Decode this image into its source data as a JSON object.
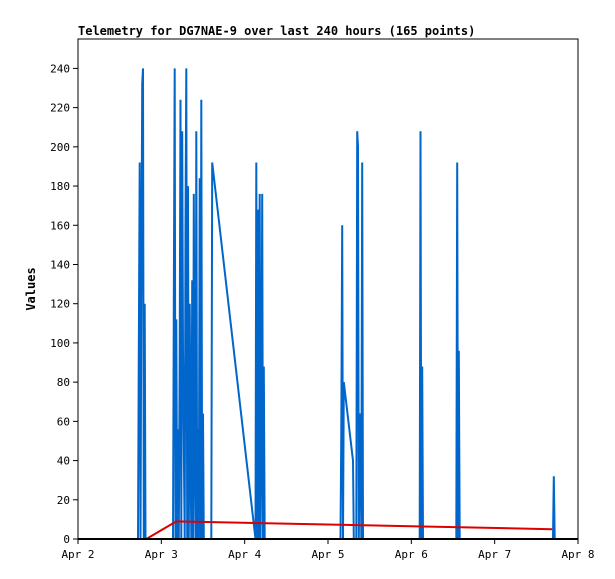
{
  "chart_data": {
    "type": "line",
    "title": "Telemetry for DG7NAE-9 over last 240 hours (165 points)",
    "xlabel": "",
    "ylabel": "Values",
    "x_tick_labels": [
      "Apr 2",
      "Apr 3",
      "Apr 4",
      "Apr 5",
      "Apr 6",
      "Apr 7",
      "Apr 8"
    ],
    "y_ticks": [
      0,
      20,
      40,
      60,
      80,
      100,
      120,
      140,
      160,
      180,
      200,
      220,
      240
    ],
    "x_range_days": [
      2.0,
      8.0
    ],
    "ylim": [
      0,
      255
    ],
    "grid": false,
    "legend": "none",
    "series": [
      {
        "color": "#0066cc",
        "x_days": [
          2.72,
          2.73,
          2.74,
          2.75,
          2.76,
          2.77,
          2.78,
          2.79,
          2.8,
          2.81,
          2.82,
          3.14,
          3.15,
          3.16,
          3.17,
          3.18,
          3.19,
          3.2,
          3.21,
          3.22,
          3.23,
          3.24,
          3.25,
          3.26,
          3.27,
          3.28,
          3.29,
          3.3,
          3.31,
          3.32,
          3.33,
          3.34,
          3.35,
          3.36,
          3.37,
          3.38,
          3.39,
          3.4,
          3.41,
          3.42,
          3.43,
          3.44,
          3.45,
          3.46,
          3.47,
          3.48,
          3.49,
          3.5,
          3.51,
          3.52,
          3.53,
          3.54,
          3.55,
          3.56,
          3.57,
          3.58,
          3.59,
          3.6,
          3.61,
          4.13,
          4.14,
          4.15,
          4.16,
          4.17,
          4.18,
          4.19,
          4.2,
          4.21,
          4.22,
          4.23,
          4.24,
          5.15,
          5.16,
          5.17,
          5.18,
          5.19,
          5.3,
          5.31,
          5.32,
          5.33,
          5.34,
          5.35,
          5.36,
          5.37,
          5.38,
          5.39,
          5.4,
          5.41,
          5.42,
          5.43,
          6.1,
          6.11,
          6.12,
          6.13,
          6.14,
          6.54,
          6.55,
          6.56,
          6.57,
          6.58,
          7.7,
          7.71,
          7.72
        ],
        "values": [
          0,
          96,
          192,
          0,
          120,
          232,
          240,
          0,
          120,
          0,
          0,
          0,
          120,
          240,
          0,
          112,
          0,
          56,
          0,
          96,
          224,
          0,
          208,
          96,
          48,
          0,
          160,
          240,
          0,
          180,
          0,
          120,
          48,
          0,
          132,
          0,
          176,
          48,
          0,
          208,
          0,
          56,
          0,
          184,
          0,
          224,
          0,
          64,
          0,
          0,
          0,
          0,
          0,
          0,
          0,
          0,
          0,
          0,
          192,
          0,
          192,
          0,
          168,
          0,
          176,
          0,
          48,
          176,
          0,
          88,
          0,
          0,
          56,
          160,
          0,
          80,
          40,
          0,
          0,
          0,
          0,
          208,
          200,
          0,
          48,
          64,
          0,
          192,
          0,
          0,
          0,
          208,
          0,
          88,
          0,
          0,
          192,
          0,
          96,
          0,
          0,
          32,
          0
        ]
      },
      {
        "color": "#dd0000",
        "x_days": [
          2.82,
          3.18,
          7.69
        ],
        "values": [
          0,
          9,
          5
        ]
      },
      {
        "color": "#000000",
        "x_days": [
          2.0,
          8.0
        ],
        "values": [
          0,
          0
        ]
      }
    ]
  }
}
